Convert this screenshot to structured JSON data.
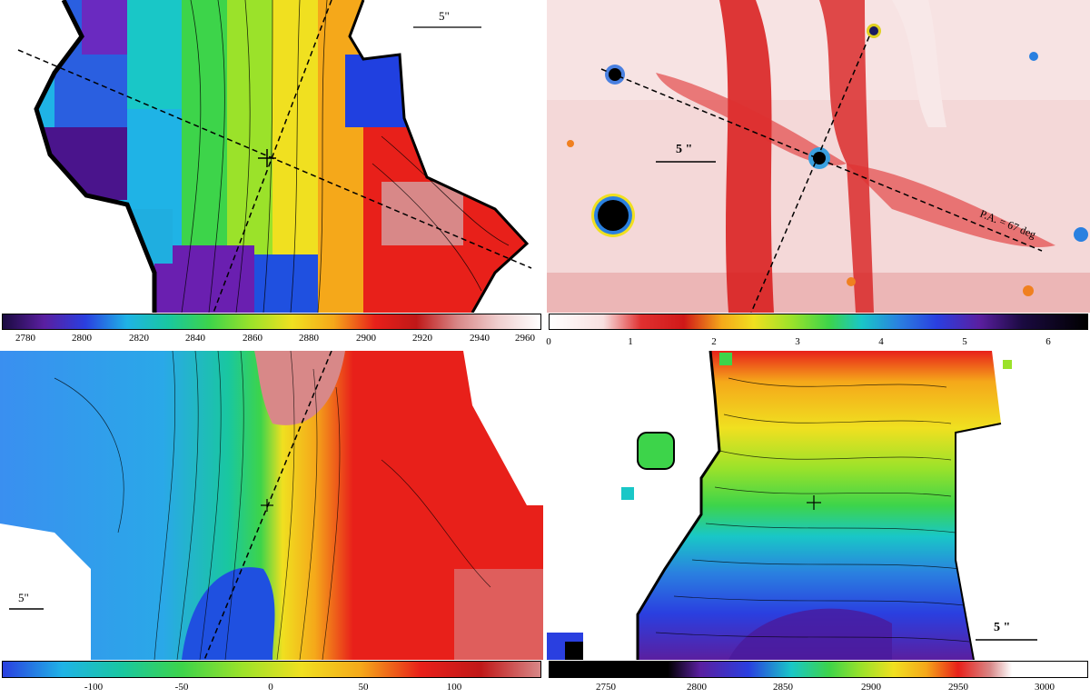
{
  "panels": [
    {
      "id": "top-left",
      "description_visible_text": {
        "scale_bar_label": "5\""
      },
      "colorbar": {
        "ticks": [
          "2780",
          "2800",
          "2820",
          "2840",
          "2860",
          "2880",
          "2900",
          "2920",
          "2940",
          "2960"
        ]
      }
    },
    {
      "id": "top-right",
      "description_visible_text": {
        "scale_bar_label": "5 \"",
        "position_angle_label": "P.A. = 67 deg"
      },
      "colorbar": {
        "ticks": [
          "0",
          "1",
          "2",
          "3",
          "4",
          "5",
          "6"
        ]
      }
    },
    {
      "id": "bottom-left",
      "description_visible_text": {
        "scale_bar_label": "5\""
      },
      "colorbar": {
        "ticks": [
          "-100",
          "-50",
          "0",
          "50",
          "100"
        ]
      }
    },
    {
      "id": "bottom-right",
      "description_visible_text": {
        "scale_bar_label": "5 \""
      },
      "colorbar": {
        "ticks": [
          "2750",
          "2800",
          "2850",
          "2900",
          "2950",
          "3000"
        ]
      }
    }
  ]
}
